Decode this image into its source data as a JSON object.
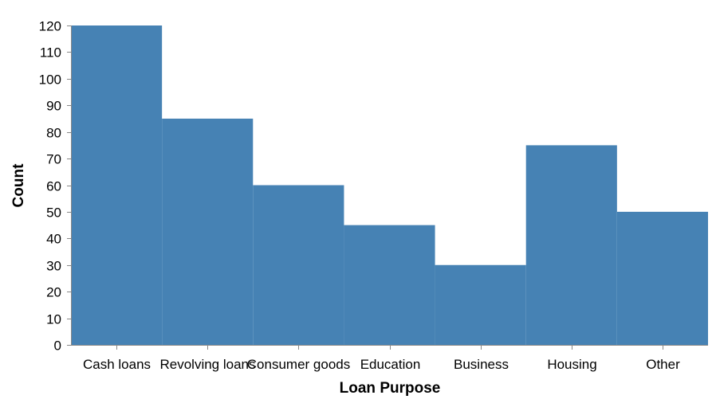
{
  "chart_data": {
    "type": "bar",
    "categories": [
      "Cash loans",
      "Revolving loans",
      "Consumer goods",
      "Education",
      "Business",
      "Housing",
      "Other"
    ],
    "values": [
      120,
      85,
      60,
      45,
      30,
      75,
      50
    ],
    "title": "",
    "xlabel": "Loan Purpose",
    "ylabel": "Count",
    "ylim": [
      0,
      120
    ],
    "yticks": [
      0,
      10,
      20,
      30,
      40,
      50,
      60,
      70,
      80,
      90,
      100,
      110,
      120
    ],
    "grid": false,
    "bar_color": "#4682b4",
    "axis_color": "#888888"
  }
}
